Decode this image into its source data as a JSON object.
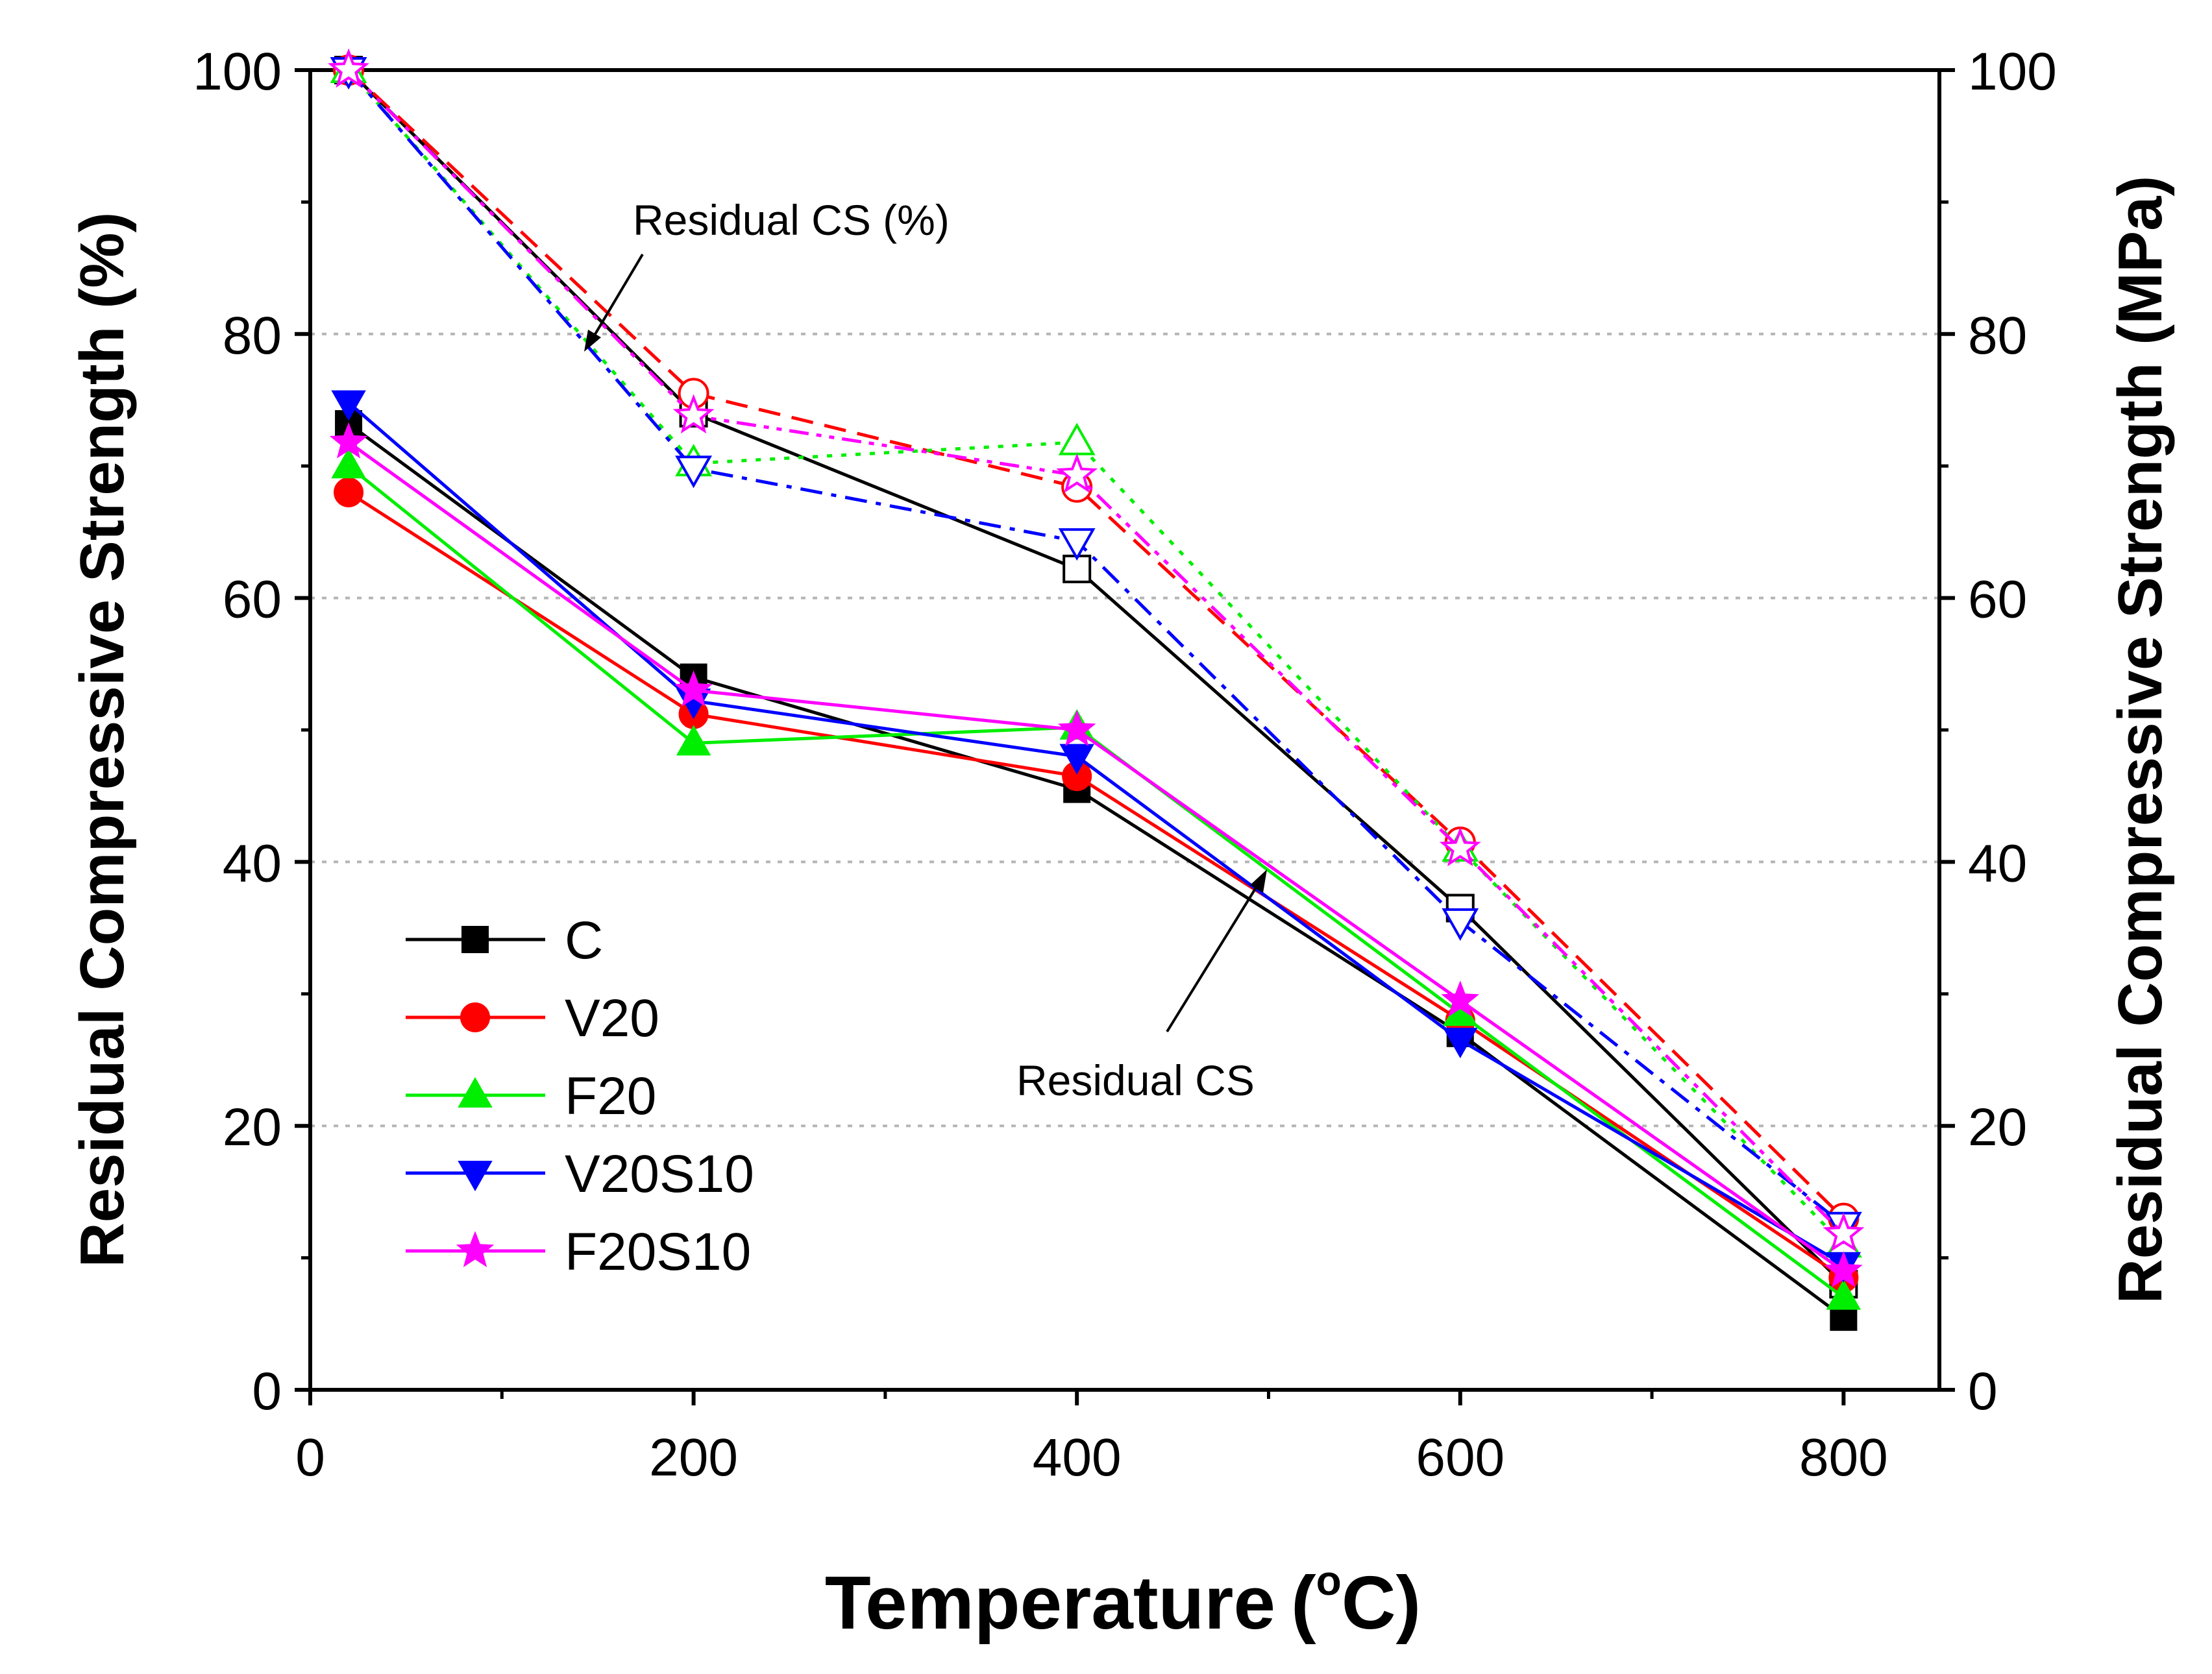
{
  "chart_data": {
    "type": "line",
    "title": "",
    "xlabel": "Temperature",
    "xlabel_unit": "(°C)",
    "xlabel_unit_open": "(",
    "xlabel_unit_deg": "o",
    "xlabel_unit_close": "C)",
    "ylabel_left": "Residual Compressive Strength (%)",
    "ylabel_right": "Residual Compressive Strength (MPa)",
    "xlim": [
      0,
      850
    ],
    "ylim_left": [
      0,
      100
    ],
    "ylim_right": [
      0,
      100
    ],
    "x_ticks": [
      "0",
      "200",
      "400",
      "600",
      "800"
    ],
    "y_ticks_left": [
      "0",
      "20",
      "40",
      "60",
      "80",
      "100"
    ],
    "y_ticks_right": [
      "0",
      "20",
      "40",
      "60",
      "80",
      "100"
    ],
    "grid": "horizontal dotted",
    "legend_position": "lower-left",
    "x": [
      20,
      200,
      400,
      600,
      800
    ],
    "series_mpa": [
      {
        "name": "C",
        "color": "#000000",
        "marker": "square",
        "values": [
          73.2,
          54.0,
          45.5,
          27.0,
          5.5
        ]
      },
      {
        "name": "V20",
        "color": "#ff0000",
        "marker": "circle",
        "values": [
          68.0,
          51.2,
          46.5,
          28.0,
          8.5
        ]
      },
      {
        "name": "F20",
        "color": "#00ee00",
        "marker": "triangle-up",
        "values": [
          70.0,
          49.0,
          50.2,
          28.5,
          7.0
        ]
      },
      {
        "name": "V20S10",
        "color": "#0000ff",
        "marker": "triangle-down",
        "values": [
          74.8,
          52.2,
          48.0,
          26.5,
          9.5
        ]
      },
      {
        "name": "F20S10",
        "color": "#ff00ff",
        "marker": "star",
        "values": [
          71.8,
          53.0,
          50.0,
          29.5,
          9.0
        ]
      }
    ],
    "series_percent": [
      {
        "name": "C",
        "color": "#000000",
        "marker": "square-open",
        "dash": "solid",
        "values": [
          100,
          74.0,
          62.2,
          36.5,
          8.0
        ]
      },
      {
        "name": "V20",
        "color": "#ff0000",
        "marker": "circle-open",
        "dash": "dash",
        "values": [
          100,
          75.5,
          68.4,
          41.5,
          13.0
        ]
      },
      {
        "name": "F20",
        "color": "#00ee00",
        "marker": "triangle-up-open",
        "dash": "dot",
        "values": [
          100,
          70.2,
          71.8,
          41.0,
          11.0
        ]
      },
      {
        "name": "V20S10",
        "color": "#0000ff",
        "marker": "triangle-down-open",
        "dash": "dashdot",
        "values": [
          100,
          69.8,
          64.3,
          35.5,
          12.5
        ]
      },
      {
        "name": "F20S10",
        "color": "#ff00ff",
        "marker": "star-open",
        "dash": "dashdotdot",
        "values": [
          100,
          73.8,
          69.3,
          41.0,
          11.8
        ]
      }
    ],
    "annotations": [
      {
        "text": "Residual CS (%)"
      },
      {
        "text": "Residual CS"
      }
    ]
  }
}
